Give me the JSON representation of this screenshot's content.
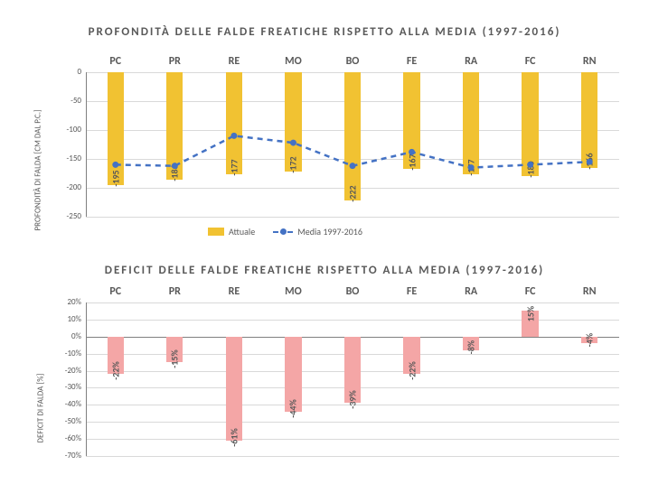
{
  "chart1": {
    "type": "bar+line",
    "title": "PROFONDITÀ DELLE FALDE FREATICHE RISPETTO ALLA MEDIA (1997-2016)",
    "title_fontsize": 13,
    "title_color": "#595959",
    "categories": [
      "PC",
      "PR",
      "RE",
      "MO",
      "BO",
      "FE",
      "RA",
      "FC",
      "RN"
    ],
    "cat_fontsize": 12,
    "cat_color": "#595959",
    "bars": {
      "series_name": "Attuale",
      "values": [
        -195,
        -186,
        -177,
        -172,
        -222,
        -167,
        -177,
        -180,
        -166
      ],
      "color": "#f1c232",
      "bar_width_frac": 0.28,
      "label_color": "#595959",
      "label_fontsize": 10
    },
    "line": {
      "series_name": "Media 1997-2016",
      "values": [
        -160,
        -162,
        -110,
        -122,
        -162,
        -138,
        -165,
        -160,
        -155
      ],
      "line_color": "#4472c4",
      "marker_color": "#4472c4",
      "marker_size": 7,
      "line_width": 2.5,
      "dash": "6,5"
    },
    "y_axis": {
      "label": "PROFONDITÀ DI FALDA [CM DAL P.C.]",
      "label_fontsize": 9,
      "min": -250,
      "max": 0,
      "tick_step": 50,
      "tick_fontsize": 9,
      "grid_color": "#d9d9d9",
      "axis_color": "#808080"
    },
    "background_color": "#ffffff",
    "legend": {
      "items": [
        "Attuale",
        "Media 1997-2016"
      ],
      "fontsize": 10,
      "position": "bottom-center"
    }
  },
  "chart2": {
    "type": "bar",
    "title": "DEFICIT DELLE FALDE FREATICHE RISPETTO ALLA MEDIA (1997-2016)",
    "title_fontsize": 13,
    "title_color": "#595959",
    "categories": [
      "PC",
      "PR",
      "RE",
      "MO",
      "BO",
      "FE",
      "RA",
      "FC",
      "RN"
    ],
    "cat_fontsize": 12,
    "cat_color": "#595959",
    "bars": {
      "values": [
        -22,
        -15,
        -61,
        -44,
        -39,
        -22,
        -8,
        15,
        -4
      ],
      "value_labels": [
        "-22%",
        "-15%",
        "-61%",
        "-44%",
        "-39%",
        "-22%",
        "-8%",
        "15%",
        "-4%"
      ],
      "color": "#f4a6a6",
      "bar_width_frac": 0.28,
      "label_color": "#595959",
      "label_fontsize": 10
    },
    "y_axis": {
      "label": "DEFICIT DI FALDA [%]",
      "label_fontsize": 9,
      "min": -70,
      "max": 20,
      "tick_step": 10,
      "tick_labels": [
        "-70%",
        "-60%",
        "-50%",
        "-40%",
        "-30%",
        "-20%",
        "-10%",
        "0%",
        "10%",
        "20%"
      ],
      "tick_fontsize": 9,
      "grid_color": "#d9d9d9",
      "axis_color": "#808080"
    },
    "background_color": "#ffffff"
  }
}
